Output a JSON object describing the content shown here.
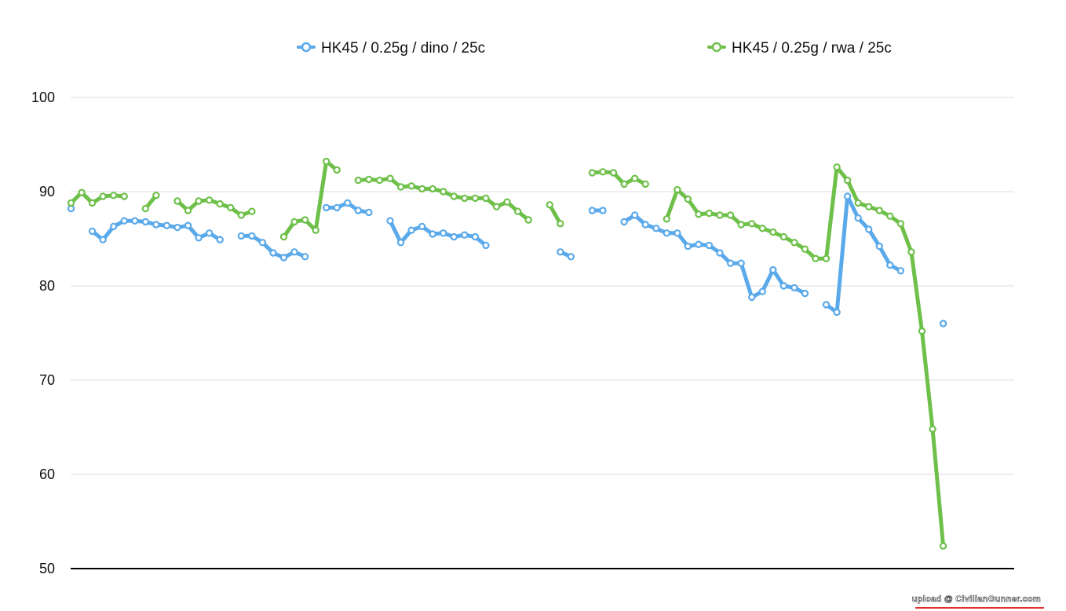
{
  "chart_data": {
    "type": "line",
    "title": "",
    "xlabel": "",
    "ylabel": "",
    "ylim": [
      50,
      100
    ],
    "yticks": [
      50,
      60,
      70,
      80,
      90,
      100
    ],
    "grid": true,
    "legend_position": "top",
    "x_count": 83,
    "series": [
      {
        "name": "HK45 / 0.25g / dino / 25c",
        "color": "#5aa9ea",
        "values": [
          88.2,
          null,
          85.8,
          84.9,
          86.3,
          86.9,
          86.9,
          86.8,
          86.5,
          86.4,
          86.2,
          86.4,
          85.1,
          85.6,
          84.9,
          null,
          85.3,
          85.3,
          84.6,
          83.5,
          83.0,
          83.6,
          83.1,
          null,
          88.3,
          88.3,
          88.8,
          88.0,
          87.8,
          null,
          86.9,
          84.6,
          85.9,
          86.3,
          85.5,
          85.6,
          85.2,
          85.4,
          85.2,
          84.3,
          null,
          null,
          null,
          null,
          null,
          null,
          83.6,
          83.1,
          null,
          88.0,
          88.0,
          null,
          86.8,
          87.5,
          86.5,
          86.1,
          85.6,
          85.6,
          84.2,
          84.4,
          84.3,
          83.5,
          82.4,
          82.4,
          78.8,
          79.4,
          81.7,
          80.0,
          79.8,
          79.2,
          null,
          78.0,
          77.2,
          89.5,
          87.2,
          86.0,
          84.2,
          82.2,
          81.6,
          null,
          null,
          null,
          76.0
        ]
      },
      {
        "name": "HK45 / 0.25g / rwa / 25c",
        "color": "#6ec04a",
        "values": [
          88.8,
          89.9,
          88.8,
          89.5,
          89.6,
          89.5,
          null,
          88.2,
          89.6,
          null,
          89.0,
          88.0,
          89.0,
          89.1,
          88.7,
          88.3,
          87.5,
          87.9,
          null,
          null,
          85.2,
          86.8,
          87.0,
          85.9,
          93.2,
          92.3,
          null,
          91.2,
          91.3,
          91.2,
          91.4,
          90.5,
          90.6,
          90.3,
          90.3,
          90.0,
          89.5,
          89.3,
          89.3,
          89.3,
          88.4,
          88.9,
          87.9,
          87.0,
          null,
          88.6,
          86.6,
          null,
          null,
          92.0,
          92.1,
          92.0,
          90.8,
          91.4,
          90.8,
          null,
          87.1,
          90.2,
          89.2,
          87.6,
          87.7,
          87.5,
          87.5,
          86.5,
          86.6,
          86.1,
          85.7,
          85.2,
          84.6,
          83.9,
          82.9,
          82.9,
          92.6,
          91.2,
          88.8,
          88.4,
          88.0,
          87.4,
          86.6,
          83.6,
          75.2,
          64.8,
          52.4
        ]
      }
    ]
  }
}
